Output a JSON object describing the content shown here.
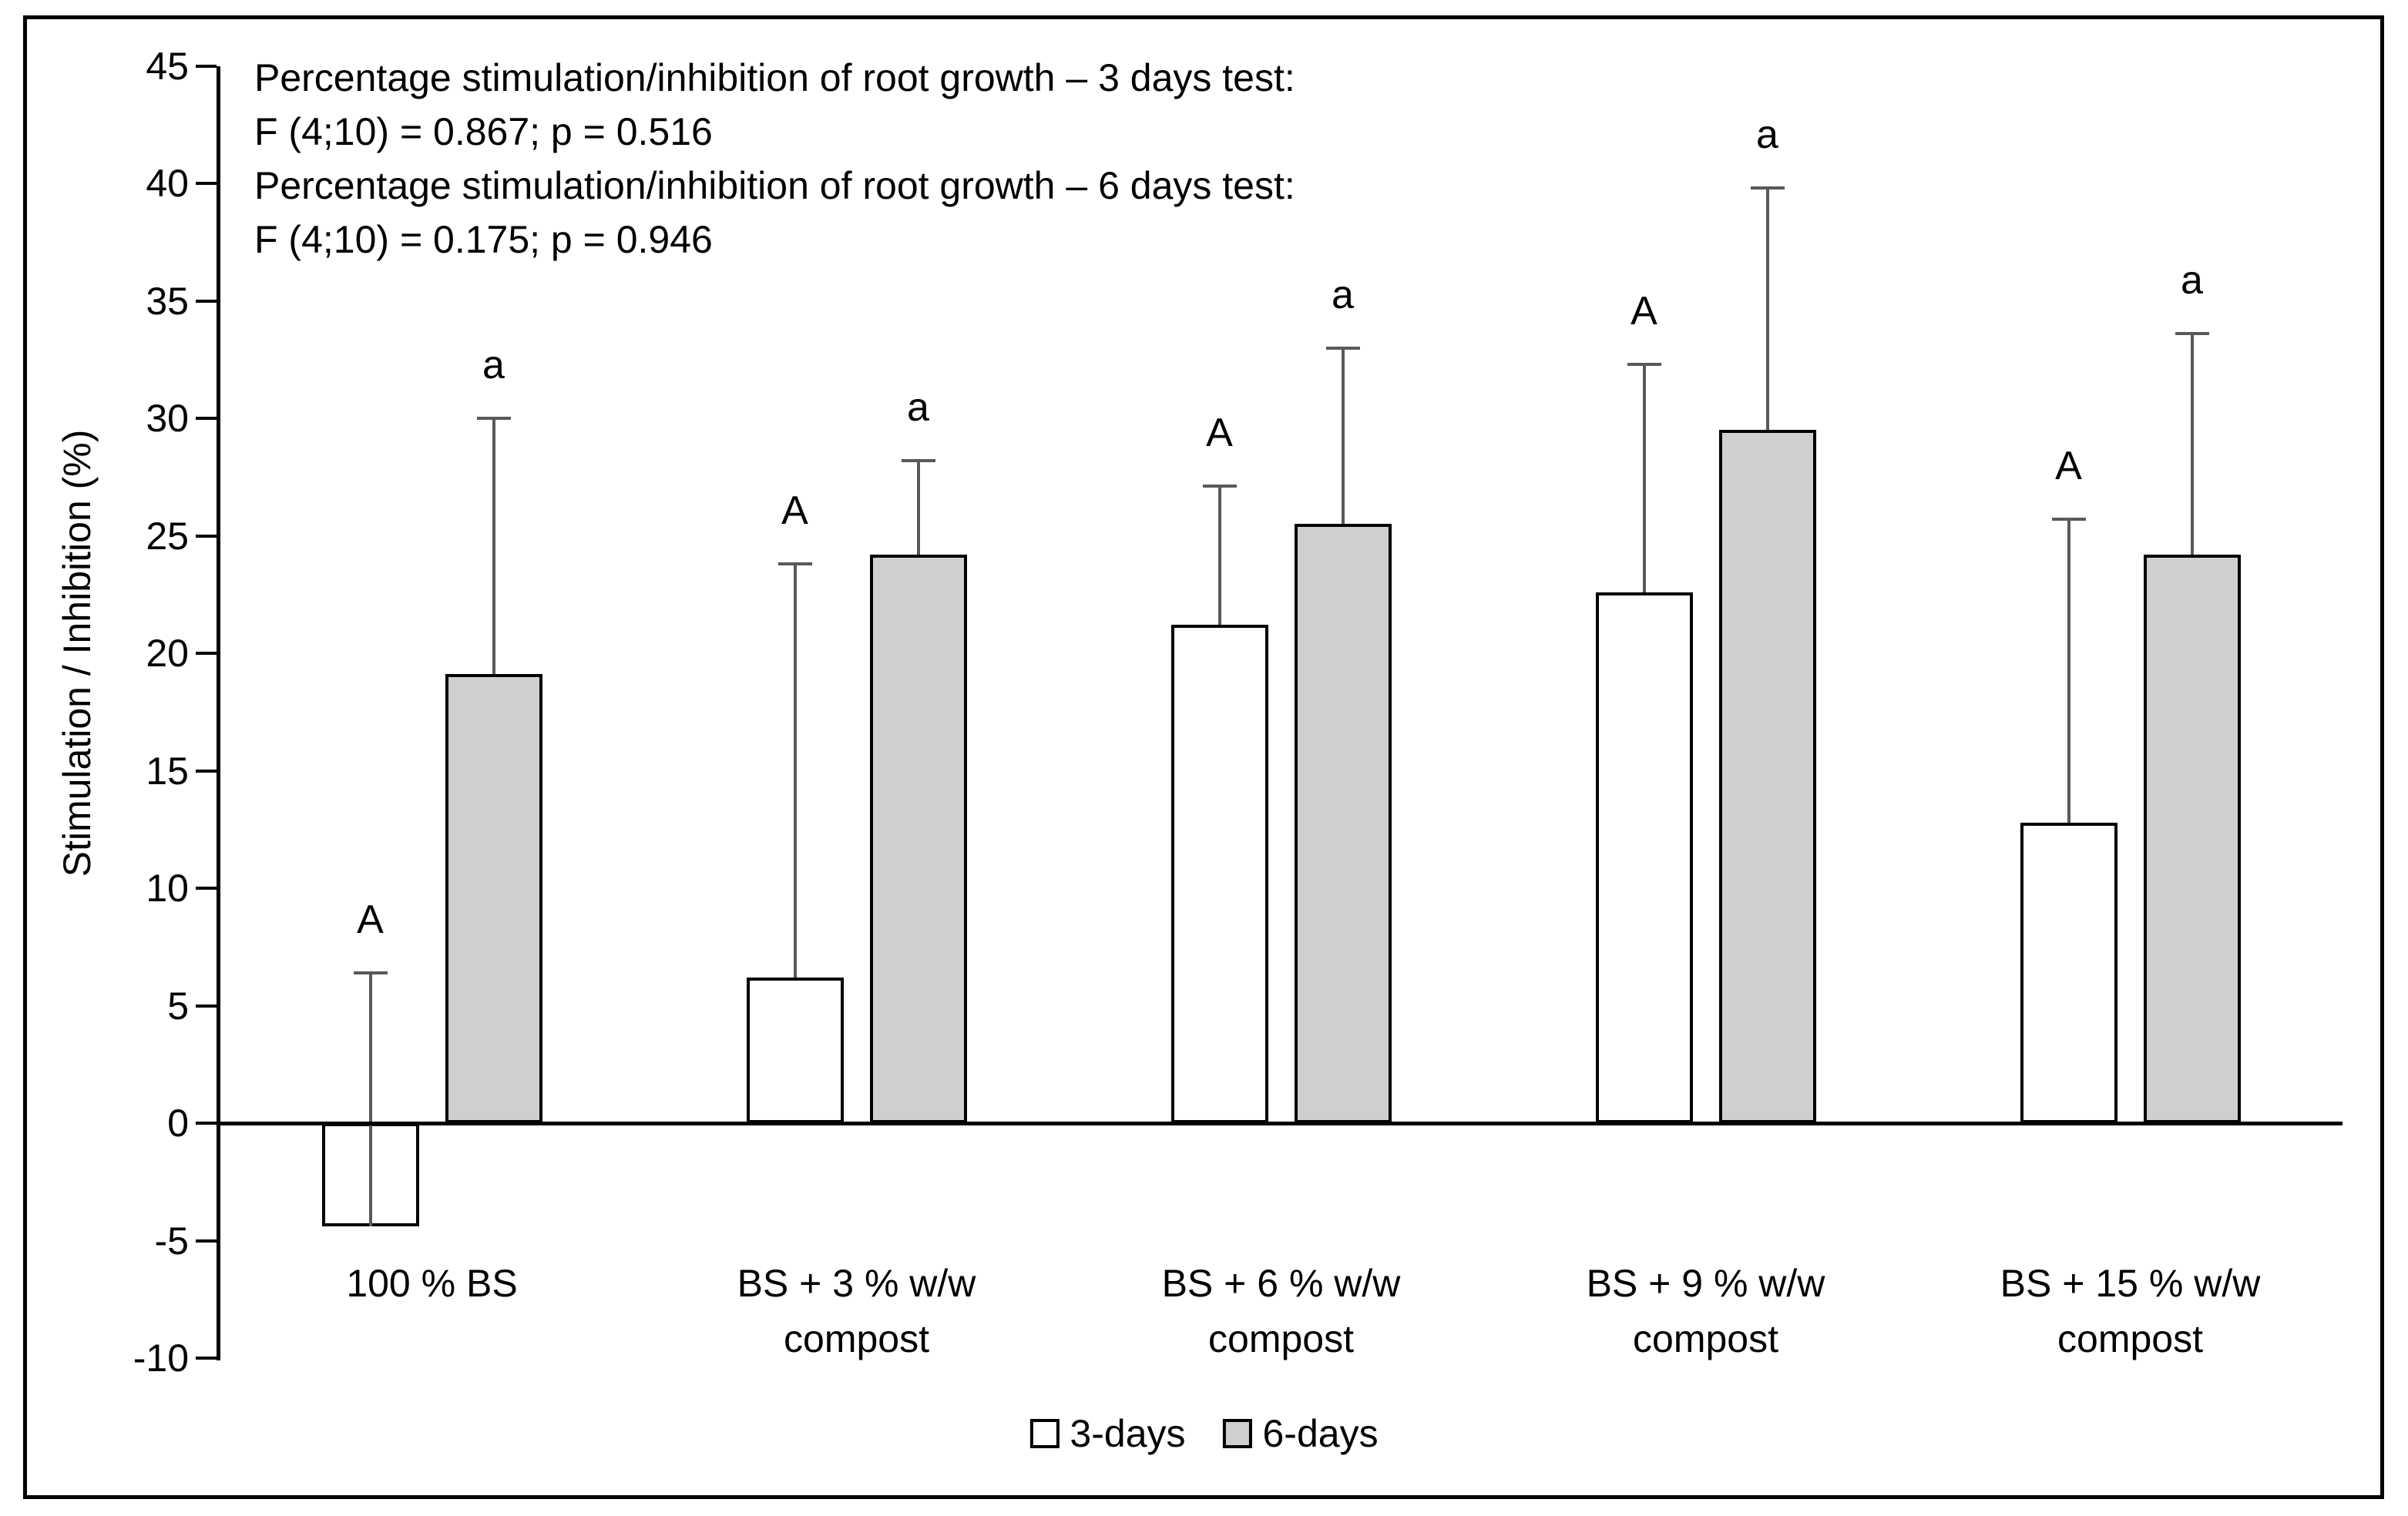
{
  "figure": {
    "background": "#ffffff",
    "border_color": "#000000",
    "text_color": "#000000"
  },
  "annotation": {
    "lines": [
      "Percentage stimulation/inhibition of root growth – 3 days test:",
      "F (4;10) = 0.867; p = 0.516",
      "Percentage stimulation/inhibition of root growth – 6 days test:",
      "F (4;10) = 0.175; p = 0.946"
    ]
  },
  "chart_data": {
    "type": "bar",
    "title": "",
    "xlabel": "",
    "ylabel": "Stimulation / Inhibition  (%)",
    "ylim": [
      -10,
      45
    ],
    "ytick_step": 5,
    "yticks": [
      45,
      40,
      35,
      30,
      25,
      20,
      15,
      10,
      5,
      0,
      -5,
      -10
    ],
    "grid": false,
    "legend_position": "bottom",
    "categories": [
      "100 % BS",
      "BS + 3 % w/w\ncompost",
      "BS + 6 % w/w\ncompost",
      "BS + 9 % w/w\ncompost",
      "BS + 15 % w/w\ncompost"
    ],
    "series": [
      {
        "name": "3-days",
        "fill": "#ffffff",
        "border": "#000000",
        "values": [
          -4.4,
          6.2,
          21.2,
          22.6,
          12.8
        ],
        "error_up": [
          10.8,
          17.6,
          5.9,
          9.7,
          12.9
        ],
        "letters": [
          "A",
          "A",
          "A",
          "A",
          "A"
        ]
      },
      {
        "name": "6-days",
        "fill": "#d0cece",
        "border": "#000000",
        "values": [
          19.1,
          24.2,
          25.5,
          29.5,
          24.2
        ],
        "error_up": [
          10.9,
          4.0,
          7.5,
          10.3,
          9.4
        ],
        "letters": [
          "a",
          "a",
          "a",
          "a",
          "a"
        ]
      }
    ],
    "error_bar_color": "#595959",
    "axis_color": "#000000"
  }
}
